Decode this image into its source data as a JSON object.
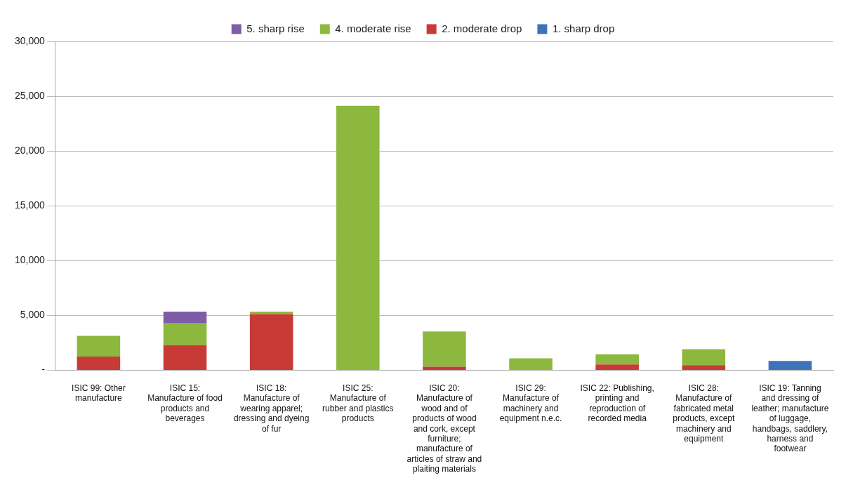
{
  "chart_data": {
    "type": "bar",
    "stacked": true,
    "legend": "top",
    "grid": "y",
    "categories": [
      "ISIC 99: Other manufacture",
      "ISIC 15: Manufacture of food products and beverages",
      "ISIC 18: Manufacture of wearing apparel; dressing and dyeing of fur",
      "ISIC 25: Manufacture of rubber and plastics products",
      "ISIC 20: Manufacture of wood and of products of wood and cork, except furniture; manufacture of articles of straw and plaiting materials",
      "ISIC 29: Manufacture of machinery and equipment n.e.c.",
      "ISIC 22: Publishing, printing and reproduction of recorded media",
      "ISIC 28: Manufacture of fabricated metal products, except machinery and equipment",
      "ISIC 19: Tanning and dressing of leather; manufacture of luggage, handbags, saddlery, harness and footwear"
    ],
    "series": [
      {
        "name": "1. sharp drop",
        "color": "#3d74b9",
        "values": [
          null,
          null,
          null,
          null,
          null,
          null,
          null,
          null,
          840
        ]
      },
      {
        "name": "2. moderate drop",
        "color": "#c83a35",
        "values": [
          1250,
          2290,
          5110,
          null,
          320,
          null,
          530,
          460,
          null
        ]
      },
      {
        "name": "4. moderate rise",
        "color": "#8db83f",
        "values": [
          1880,
          1980,
          230,
          24120,
          3210,
          1080,
          920,
          1450,
          null
        ]
      },
      {
        "name": "5. sharp rise",
        "color": "#7f5ca8",
        "values": [
          null,
          1070,
          null,
          null,
          null,
          null,
          null,
          null,
          null
        ]
      }
    ],
    "ylim": [
      0,
      30000
    ],
    "yticks": [
      {
        "value": 0,
        "label": "-"
      },
      {
        "value": 5000,
        "label": "5,000"
      },
      {
        "value": 10000,
        "label": "10,000"
      },
      {
        "value": 15000,
        "label": "15,000"
      },
      {
        "value": 20000,
        "label": "20,000"
      },
      {
        "value": 25000,
        "label": "25,000"
      },
      {
        "value": 30000,
        "label": "30,000"
      }
    ]
  }
}
